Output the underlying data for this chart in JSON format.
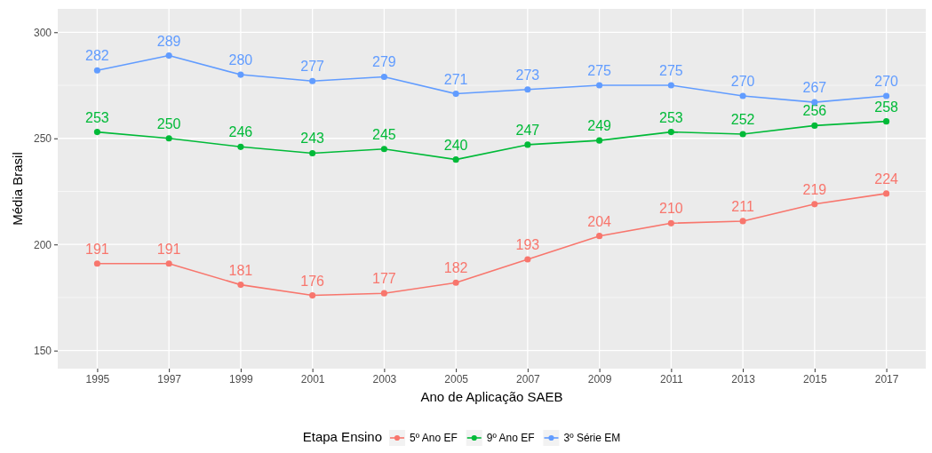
{
  "chart_data": {
    "type": "line",
    "xlabel": "Ano de Aplicação SAEB",
    "ylabel": "Média Brasil",
    "legend_title": "Etapa Ensino",
    "categories": [
      "1995",
      "1997",
      "1999",
      "2001",
      "2003",
      "2005",
      "2007",
      "2009",
      "2011",
      "2013",
      "2015",
      "2017"
    ],
    "series": [
      {
        "name": "5º Ano EF",
        "color": "#f8766d",
        "values": [
          191,
          191,
          181,
          176,
          177,
          182,
          193,
          204,
          210,
          211,
          219,
          224
        ]
      },
      {
        "name": "9º Ano EF",
        "color": "#00ba38",
        "values": [
          253,
          250,
          246,
          243,
          245,
          240,
          247,
          249,
          253,
          252,
          256,
          258
        ]
      },
      {
        "name": "3º Série EM",
        "color": "#619cff",
        "values": [
          282,
          289,
          280,
          277,
          279,
          271,
          273,
          275,
          275,
          270,
          267,
          270
        ]
      }
    ],
    "ylim": [
      141.5,
      311
    ],
    "yticks": [
      150,
      200,
      250,
      300
    ],
    "grid": true,
    "legend": "bottom",
    "marker": "circle",
    "line_style": "solid",
    "data_labels": true
  }
}
